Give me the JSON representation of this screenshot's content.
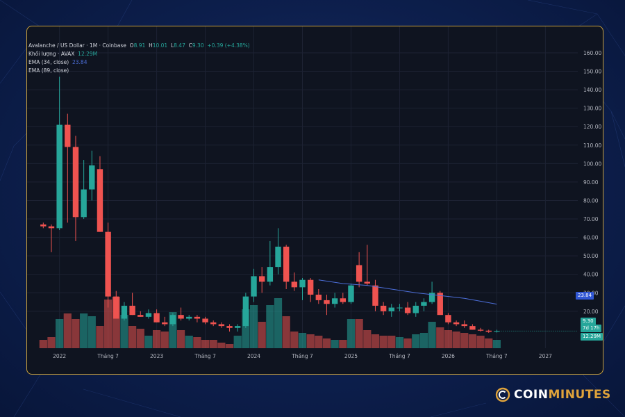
{
  "legend": {
    "pair": "Avalanche / US Dollar · 1M · Coinbase",
    "o_label": "O",
    "o_val": "8.91",
    "h_label": "H",
    "h_val": "10.01",
    "l_label": "L",
    "l_val": "8.47",
    "c_label": "C",
    "c_val": "9.30",
    "change": "+0.39 (+4.38%)",
    "volume_label": "Khối lượng · AVAX",
    "volume_val": "12.29M",
    "ema34_label": "EMA (34, close)",
    "ema34_val": "23.84",
    "ema89_label": "EMA (89, close)"
  },
  "tags": {
    "ema34": "23.84",
    "price": "9.30",
    "countdown": "7d 17h",
    "volume": "12.29M"
  },
  "brand": {
    "name_a": "COIN",
    "name_b": "MINUTES"
  },
  "colors": {
    "up": "#26a69a",
    "down": "#ef5350",
    "ema34": "#4c6ed8",
    "accent": "#e0a33b",
    "panel_bg": "#0f1420"
  },
  "chart_data": {
    "type": "candlestick",
    "x_tick_labels": [
      "2022",
      "Tháng 7",
      "2023",
      "Tháng 7",
      "2024",
      "Tháng 7",
      "2025",
      "Tháng 7",
      "2026",
      "Tháng 7",
      "2027"
    ],
    "x_tick_months": [
      0,
      6,
      12,
      18,
      24,
      30,
      36,
      42,
      48,
      54,
      60
    ],
    "x_month_range": [
      -4,
      64
    ],
    "y_ticks": [
      20,
      30,
      40,
      50,
      60,
      70,
      80,
      90,
      100,
      110,
      120,
      130,
      140,
      150,
      160
    ],
    "y_tick_labels": [
      "20.00",
      "30.00",
      "40.00",
      "50.00",
      "60.00",
      "70.00",
      "80.00",
      "90.00",
      "100.00",
      "110.00",
      "120.00",
      "130.00",
      "140.00",
      "150.00",
      "160.00"
    ],
    "ylim": [
      0,
      163
    ],
    "price_scale": "linear",
    "grid": true,
    "candles": [
      {
        "m": -2,
        "o": 67,
        "h": 68,
        "l": 65,
        "c": 66
      },
      {
        "m": -1,
        "o": 66,
        "h": 67,
        "l": 52,
        "c": 65
      },
      {
        "m": 0,
        "o": 65,
        "h": 147,
        "l": 64,
        "c": 121
      },
      {
        "m": 1,
        "o": 121,
        "h": 127,
        "l": 68,
        "c": 109
      },
      {
        "m": 2,
        "o": 109,
        "h": 115,
        "l": 58,
        "c": 71
      },
      {
        "m": 3,
        "o": 71,
        "h": 102,
        "l": 70,
        "c": 86
      },
      {
        "m": 4,
        "o": 86,
        "h": 107,
        "l": 80,
        "c": 99
      },
      {
        "m": 5,
        "o": 97,
        "h": 104,
        "l": 63,
        "c": 63
      },
      {
        "m": 6,
        "o": 63,
        "h": 68,
        "l": 22,
        "c": 28
      },
      {
        "m": 7,
        "o": 28,
        "h": 31,
        "l": 16,
        "c": 16
      },
      {
        "m": 8,
        "o": 16,
        "h": 25,
        "l": 15,
        "c": 23
      },
      {
        "m": 9,
        "o": 23,
        "h": 30,
        "l": 18,
        "c": 18
      },
      {
        "m": 10,
        "o": 18,
        "h": 20,
        "l": 17,
        "c": 17
      },
      {
        "m": 11,
        "o": 17,
        "h": 21,
        "l": 16,
        "c": 19
      },
      {
        "m": 12,
        "o": 19,
        "h": 21,
        "l": 14,
        "c": 14
      },
      {
        "m": 13,
        "o": 14,
        "h": 17,
        "l": 12,
        "c": 13
      },
      {
        "m": 14,
        "o": 13,
        "h": 19,
        "l": 12,
        "c": 18
      },
      {
        "m": 15,
        "o": 18,
        "h": 22,
        "l": 15,
        "c": 16
      },
      {
        "m": 16,
        "o": 16,
        "h": 18,
        "l": 15,
        "c": 17
      },
      {
        "m": 17,
        "o": 17,
        "h": 18,
        "l": 14,
        "c": 16
      },
      {
        "m": 18,
        "o": 16,
        "h": 17,
        "l": 13,
        "c": 14
      },
      {
        "m": 19,
        "o": 14,
        "h": 15,
        "l": 12,
        "c": 13
      },
      {
        "m": 20,
        "o": 13,
        "h": 14,
        "l": 11,
        "c": 12
      },
      {
        "m": 21,
        "o": 12,
        "h": 13,
        "l": 9,
        "c": 11
      },
      {
        "m": 22,
        "o": 11,
        "h": 13,
        "l": 9,
        "c": 12
      },
      {
        "m": 23,
        "o": 12,
        "h": 30,
        "l": 11,
        "c": 28
      },
      {
        "m": 24,
        "o": 28,
        "h": 43,
        "l": 25,
        "c": 39
      },
      {
        "m": 25,
        "o": 39,
        "h": 44,
        "l": 30,
        "c": 36
      },
      {
        "m": 26,
        "o": 36,
        "h": 58,
        "l": 34,
        "c": 44
      },
      {
        "m": 27,
        "o": 44,
        "h": 65,
        "l": 40,
        "c": 55
      },
      {
        "m": 28,
        "o": 55,
        "h": 56,
        "l": 32,
        "c": 36
      },
      {
        "m": 29,
        "o": 36,
        "h": 41,
        "l": 31,
        "c": 33
      },
      {
        "m": 30,
        "o": 33,
        "h": 38,
        "l": 26,
        "c": 37
      },
      {
        "m": 31,
        "o": 37,
        "h": 38,
        "l": 25,
        "c": 29
      },
      {
        "m": 32,
        "o": 29,
        "h": 32,
        "l": 24,
        "c": 26
      },
      {
        "m": 33,
        "o": 26,
        "h": 29,
        "l": 18,
        "c": 24
      },
      {
        "m": 34,
        "o": 24,
        "h": 30,
        "l": 22,
        "c": 27
      },
      {
        "m": 35,
        "o": 27,
        "h": 30,
        "l": 24,
        "c": 25
      },
      {
        "m": 36,
        "o": 25,
        "h": 35,
        "l": 24,
        "c": 34
      },
      {
        "m": 37,
        "o": 45,
        "h": 52,
        "l": 33,
        "c": 36
      },
      {
        "m": 38,
        "o": 36,
        "h": 56,
        "l": 34,
        "c": 35
      },
      {
        "m": 39,
        "o": 34,
        "h": 37,
        "l": 20,
        "c": 23
      },
      {
        "m": 40,
        "o": 23,
        "h": 25,
        "l": 18,
        "c": 20
      },
      {
        "m": 41,
        "o": 20,
        "h": 24,
        "l": 17,
        "c": 22
      },
      {
        "m": 42,
        "o": 22,
        "h": 24,
        "l": 20,
        "c": 22
      },
      {
        "m": 43,
        "o": 22,
        "h": 25,
        "l": 18,
        "c": 19
      },
      {
        "m": 44,
        "o": 19,
        "h": 25,
        "l": 17,
        "c": 23
      },
      {
        "m": 45,
        "o": 23,
        "h": 27,
        "l": 20,
        "c": 25
      },
      {
        "m": 46,
        "o": 25,
        "h": 36,
        "l": 24,
        "c": 30
      },
      {
        "m": 47,
        "o": 30,
        "h": 31,
        "l": 18,
        "c": 18
      },
      {
        "m": 48,
        "o": 18,
        "h": 19,
        "l": 13,
        "c": 14
      },
      {
        "m": 49,
        "o": 14,
        "h": 15,
        "l": 12,
        "c": 13
      },
      {
        "m": 50,
        "o": 13,
        "h": 15,
        "l": 11,
        "c": 12
      },
      {
        "m": 51,
        "o": 12,
        "h": 13,
        "l": 10,
        "c": 10
      },
      {
        "m": 52,
        "o": 10,
        "h": 11,
        "l": 9,
        "c": 9.5
      },
      {
        "m": 53,
        "o": 9.5,
        "h": 10,
        "l": 8.3,
        "c": 8.9
      },
      {
        "m": 54,
        "o": 8.91,
        "h": 10.01,
        "l": 8.47,
        "c": 9.3
      }
    ],
    "volume_series": [
      {
        "m": -2,
        "v": 6,
        "up": false
      },
      {
        "m": -1,
        "v": 8,
        "up": false
      },
      {
        "m": 0,
        "v": 21,
        "up": true
      },
      {
        "m": 1,
        "v": 25,
        "up": false
      },
      {
        "m": 2,
        "v": 21,
        "up": false
      },
      {
        "m": 3,
        "v": 25,
        "up": true
      },
      {
        "m": 4,
        "v": 23,
        "up": true
      },
      {
        "m": 5,
        "v": 16,
        "up": false
      },
      {
        "m": 6,
        "v": 35,
        "up": false
      },
      {
        "m": 7,
        "v": 37,
        "up": false
      },
      {
        "m": 8,
        "v": 24,
        "up": true
      },
      {
        "m": 9,
        "v": 16,
        "up": false
      },
      {
        "m": 10,
        "v": 14,
        "up": false
      },
      {
        "m": 11,
        "v": 9,
        "up": true
      },
      {
        "m": 12,
        "v": 13,
        "up": false
      },
      {
        "m": 13,
        "v": 12,
        "up": false
      },
      {
        "m": 14,
        "v": 26,
        "up": true
      },
      {
        "m": 15,
        "v": 13,
        "up": false
      },
      {
        "m": 16,
        "v": 9,
        "up": true
      },
      {
        "m": 17,
        "v": 8,
        "up": false
      },
      {
        "m": 18,
        "v": 6,
        "up": false
      },
      {
        "m": 19,
        "v": 6,
        "up": false
      },
      {
        "m": 20,
        "v": 4,
        "up": false
      },
      {
        "m": 21,
        "v": 3,
        "up": false
      },
      {
        "m": 22,
        "v": 9,
        "up": true
      },
      {
        "m": 23,
        "v": 28,
        "up": true
      },
      {
        "m": 24,
        "v": 31,
        "up": true
      },
      {
        "m": 25,
        "v": 19,
        "up": false
      },
      {
        "m": 26,
        "v": 31,
        "up": true
      },
      {
        "m": 27,
        "v": 36,
        "up": true
      },
      {
        "m": 28,
        "v": 23,
        "up": false
      },
      {
        "m": 29,
        "v": 12,
        "up": false
      },
      {
        "m": 30,
        "v": 11,
        "up": true
      },
      {
        "m": 31,
        "v": 10,
        "up": false
      },
      {
        "m": 32,
        "v": 9,
        "up": false
      },
      {
        "m": 33,
        "v": 7,
        "up": false
      },
      {
        "m": 34,
        "v": 6,
        "up": true
      },
      {
        "m": 35,
        "v": 6,
        "up": false
      },
      {
        "m": 36,
        "v": 21,
        "up": true
      },
      {
        "m": 37,
        "v": 21,
        "up": false
      },
      {
        "m": 38,
        "v": 13,
        "up": false
      },
      {
        "m": 39,
        "v": 10,
        "up": false
      },
      {
        "m": 40,
        "v": 9,
        "up": false
      },
      {
        "m": 41,
        "v": 9,
        "up": false
      },
      {
        "m": 42,
        "v": 8,
        "up": true
      },
      {
        "m": 43,
        "v": 7,
        "up": false
      },
      {
        "m": 44,
        "v": 10,
        "up": true
      },
      {
        "m": 45,
        "v": 11,
        "up": true
      },
      {
        "m": 46,
        "v": 19,
        "up": true
      },
      {
        "m": 47,
        "v": 15,
        "up": false
      },
      {
        "m": 48,
        "v": 13,
        "up": false
      },
      {
        "m": 49,
        "v": 12,
        "up": false
      },
      {
        "m": 50,
        "v": 11,
        "up": false
      },
      {
        "m": 51,
        "v": 10,
        "up": false
      },
      {
        "m": 52,
        "v": 9,
        "up": false
      },
      {
        "m": 53,
        "v": 7,
        "up": false
      },
      {
        "m": 54,
        "v": 6,
        "up": true
      }
    ],
    "volume_max": 40,
    "ema34_series": [
      {
        "m": 32,
        "v": 37
      },
      {
        "m": 35,
        "v": 35
      },
      {
        "m": 38,
        "v": 34
      },
      {
        "m": 41,
        "v": 32
      },
      {
        "m": 44,
        "v": 30
      },
      {
        "m": 47,
        "v": 28.5
      },
      {
        "m": 50,
        "v": 27
      },
      {
        "m": 54,
        "v": 23.84
      }
    ]
  }
}
